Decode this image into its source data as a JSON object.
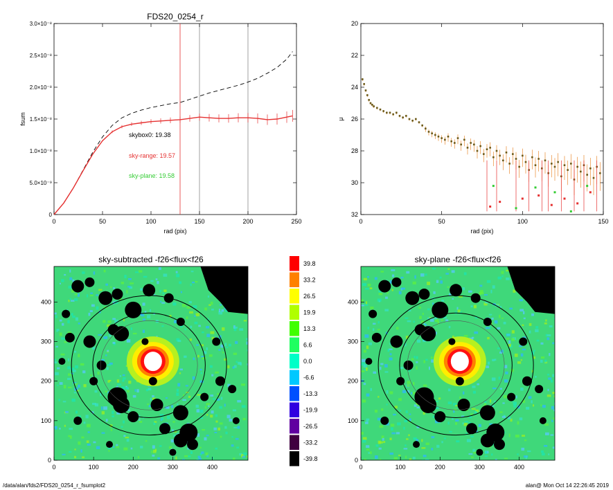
{
  "chart_data": [
    {
      "type": "line",
      "title": "FDS20_0254_r",
      "xlabel": "rad (pix)",
      "ylabel": "fsum",
      "xlim": [
        0,
        250
      ],
      "ylim": [
        0,
        3e-08
      ],
      "xticks": [
        "0",
        "50",
        "100",
        "150",
        "200",
        "250"
      ],
      "yticks": [
        "0",
        "5.0×10⁻⁹",
        "1.0×10⁻⁸",
        "1.5×10⁻⁸",
        "2.0×10⁻⁸",
        "2.5×10⁻⁸",
        "3.0×10⁻⁸"
      ],
      "vlines": [
        {
          "x": 130,
          "color": "#e53030"
        },
        {
          "x": 150,
          "color": "#888888"
        },
        {
          "x": 200,
          "color": "#888888"
        }
      ],
      "series": [
        {
          "style": "dashed",
          "color": "#000000",
          "x": [
            0,
            10,
            20,
            30,
            40,
            50,
            60,
            70,
            80,
            90,
            100,
            110,
            120,
            130,
            140,
            150,
            160,
            170,
            180,
            190,
            200,
            210,
            220,
            230,
            240,
            246
          ],
          "values": [
            0,
            1.8e-09,
            4.2e-09,
            7e-09,
            9.8e-09,
            1.22e-08,
            1.4e-08,
            1.52e-08,
            1.59e-08,
            1.64e-08,
            1.68e-08,
            1.71e-08,
            1.74e-08,
            1.76e-08,
            1.81e-08,
            1.86e-08,
            1.91e-08,
            1.95e-08,
            1.99e-08,
            2.03e-08,
            2.08e-08,
            2.14e-08,
            2.22e-08,
            2.31e-08,
            2.44e-08,
            2.56e-08
          ]
        },
        {
          "style": "solid",
          "color": "#e53030",
          "x": [
            0,
            10,
            20,
            30,
            40,
            50,
            60,
            70,
            80,
            90,
            100,
            110,
            120,
            130,
            140,
            150,
            160,
            170,
            180,
            190,
            200,
            210,
            220,
            230,
            240,
            246
          ],
          "values": [
            0,
            1.8e-09,
            4.2e-09,
            6.9e-09,
            9.5e-09,
            1.16e-08,
            1.3e-08,
            1.38e-08,
            1.42e-08,
            1.44e-08,
            1.46e-08,
            1.47e-08,
            1.48e-08,
            1.49e-08,
            1.51e-08,
            1.53e-08,
            1.52e-08,
            1.51e-08,
            1.51e-08,
            1.52e-08,
            1.52e-08,
            1.51e-08,
            1.49e-08,
            1.5e-08,
            1.53e-08,
            1.55e-08
          ]
        }
      ],
      "annotations": [
        {
          "text": "skybox0: 19.38",
          "color": "#000000"
        },
        {
          "text": "sky-range: 19.57",
          "color": "#e53030"
        },
        {
          "text": "sky-plane: 19.58",
          "color": "#33cc33"
        }
      ]
    },
    {
      "type": "scatter",
      "title": "",
      "xlabel": "rad (pix)",
      "ylabel": "μ",
      "xlim": [
        0,
        150
      ],
      "ylim": [
        32,
        20
      ],
      "xticks": [
        "0",
        "50",
        "100",
        "150"
      ],
      "yticks": [
        "20",
        "22",
        "24",
        "26",
        "28",
        "30",
        "32"
      ],
      "series": [
        {
          "name": "",
          "color": "#555555",
          "x": [
            1,
            2,
            3,
            4,
            5,
            6,
            7,
            8,
            10,
            12,
            14,
            16,
            18,
            20,
            22,
            24,
            26,
            28,
            30,
            32,
            34,
            36,
            38,
            40,
            42,
            44,
            46,
            48,
            50,
            52,
            54,
            56,
            58,
            60,
            62,
            64,
            66,
            68,
            70,
            72,
            74,
            76,
            78,
            80,
            82,
            84,
            86,
            88,
            90,
            92,
            94,
            96,
            98,
            100,
            102,
            104,
            106,
            108,
            110,
            112,
            114,
            116,
            118,
            120,
            122,
            124,
            126,
            128,
            130,
            132,
            134,
            136,
            138,
            140,
            142,
            144,
            146,
            148
          ],
          "values": [
            23.5,
            23.8,
            24.2,
            24.5,
            24.8,
            25.0,
            25.1,
            25.2,
            25.3,
            25.4,
            25.5,
            25.6,
            25.6,
            25.7,
            25.6,
            25.8,
            25.9,
            25.8,
            26.0,
            26.1,
            26.0,
            26.2,
            26.4,
            26.6,
            26.8,
            26.9,
            27.0,
            27.1,
            27.2,
            27.3,
            27.1,
            27.4,
            27.5,
            27.2,
            27.6,
            27.3,
            27.8,
            27.5,
            27.6,
            28.0,
            27.7,
            28.2,
            27.9,
            27.8,
            28.4,
            28.0,
            28.3,
            28.6,
            28.1,
            28.8,
            28.2,
            28.5,
            29.0,
            28.3,
            28.7,
            29.2,
            28.4,
            28.9,
            28.5,
            29.1,
            28.6,
            29.4,
            28.8,
            29.0,
            28.7,
            29.6,
            28.9,
            29.2,
            28.8,
            29.8,
            29.0,
            29.3,
            28.9,
            29.5,
            29.1,
            29.7,
            29.0,
            29.4
          ]
        },
        {
          "name": "",
          "color": "#e53030",
          "x": [
            80,
            86,
            100,
            110,
            118,
            126,
            134,
            142
          ],
          "values": [
            31.5,
            31.2,
            31.0,
            30.8,
            31.4,
            31.0,
            31.3,
            30.6
          ]
        },
        {
          "name": "",
          "color": "#33cc33",
          "x": [
            82,
            96,
            108,
            120,
            130,
            140
          ],
          "values": [
            30.2,
            31.6,
            30.3,
            30.6,
            31.8,
            30.2
          ]
        }
      ]
    },
    {
      "type": "heatmap",
      "title": "sky-subtracted -f26<flux<f26",
      "xlim": [
        0,
        490
      ],
      "ylim": [
        0,
        490
      ],
      "xticks": [
        "0",
        "100",
        "200",
        "300",
        "400"
      ],
      "yticks": [
        "0",
        "100",
        "200",
        "300",
        "400"
      ]
    },
    {
      "type": "heatmap",
      "title": "sky-plane -f26<flux<f26",
      "xlim": [
        0,
        490
      ],
      "ylim": [
        0,
        490
      ],
      "xticks": [
        "0",
        "100",
        "200",
        "300",
        "400"
      ],
      "yticks": [
        "0",
        "100",
        "200",
        "300",
        "400"
      ]
    }
  ],
  "colorbar": {
    "labels": [
      "39.8",
      "33.2",
      "26.5",
      "19.9",
      "13.3",
      "6.6",
      "0.0",
      "-6.6",
      "-13.3",
      "-19.9",
      "-26.5",
      "-33.2",
      "-39.8"
    ],
    "colors": [
      "#ff0000",
      "#ff8000",
      "#ffff00",
      "#b0ff00",
      "#40ff00",
      "#20ff60",
      "#00ffc8",
      "#00c8ff",
      "#0050ff",
      "#3000e0",
      "#6000a0",
      "#400040",
      "#000000"
    ]
  },
  "footer": {
    "left": "/data/alan/fds2/FDS20_0254_r_fsumplot2",
    "right": "alan@  Mon Oct 14 22:26:45 2019"
  }
}
